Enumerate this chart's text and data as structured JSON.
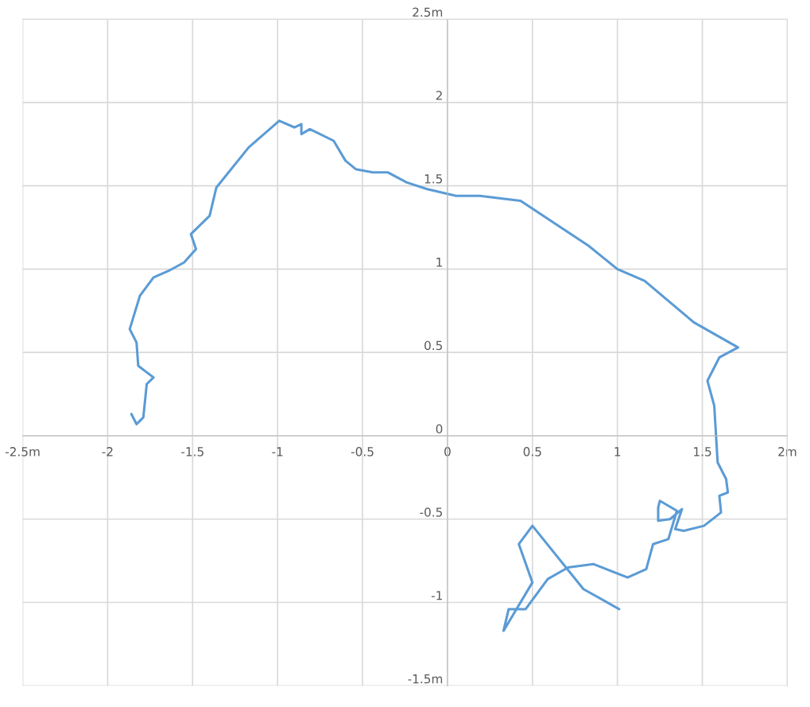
{
  "chart_data": {
    "type": "line",
    "x": [
      -1.86,
      -1.83,
      -1.79,
      -1.77,
      -1.73,
      -1.82,
      -1.83,
      -1.87,
      -1.81,
      -1.73,
      -1.64,
      -1.55,
      -1.48,
      -1.51,
      -1.4,
      -1.36,
      -1.17,
      -0.99,
      -0.9,
      -0.86,
      -0.86,
      -0.81,
      -0.67,
      -0.6,
      -0.54,
      -0.44,
      -0.35,
      -0.24,
      -0.12,
      0.05,
      0.19,
      0.43,
      0.83,
      1.0,
      1.16,
      1.45,
      1.71,
      1.6,
      1.53,
      1.57,
      1.59,
      1.64,
      1.65,
      1.6,
      1.61,
      1.51,
      1.39,
      1.34,
      1.38,
      1.31,
      1.24,
      1.24,
      1.25,
      1.35,
      1.3,
      1.21,
      1.17,
      1.06,
      0.86,
      0.71,
      0.59,
      0.46,
      0.36,
      0.33,
      0.5,
      0.42,
      0.5,
      0.8,
      1.01
    ],
    "series": [
      {
        "color": "#5b9bd5",
        "values": [
          0.13,
          0.07,
          0.11,
          0.31,
          0.35,
          0.42,
          0.56,
          0.64,
          0.84,
          0.95,
          0.99,
          1.04,
          1.12,
          1.21,
          1.32,
          1.49,
          1.73,
          1.89,
          1.85,
          1.87,
          1.81,
          1.84,
          1.77,
          1.65,
          1.6,
          1.58,
          1.58,
          1.52,
          1.48,
          1.44,
          1.44,
          1.41,
          1.14,
          1.0,
          0.93,
          0.68,
          0.53,
          0.47,
          0.33,
          0.18,
          -0.16,
          -0.26,
          -0.34,
          -0.36,
          -0.46,
          -0.54,
          -0.57,
          -0.56,
          -0.44,
          -0.5,
          -0.51,
          -0.43,
          -0.39,
          -0.45,
          -0.62,
          -0.65,
          -0.8,
          -0.85,
          -0.77,
          -0.79,
          -0.86,
          -1.04,
          -1.04,
          -1.17,
          -0.88,
          -0.65,
          -0.54,
          -0.92,
          -1.04
        ]
      }
    ],
    "xlim": [
      -2.5,
      2
    ],
    "ylim": [
      -1.5,
      2.5
    ],
    "xticks": [
      {
        "value": -2.5,
        "label": "-2.5m"
      },
      -2,
      -1.5,
      -1,
      -0.5,
      0,
      0.5,
      1,
      1.5,
      {
        "value": 2,
        "label": "2m"
      }
    ],
    "yticks": [
      {
        "value": -1.5,
        "label": "-1.5m"
      },
      -1,
      -0.5,
      0,
      0.5,
      1,
      1.5,
      2,
      {
        "value": 2.5,
        "label": "2.5m"
      }
    ],
    "grid": true
  }
}
